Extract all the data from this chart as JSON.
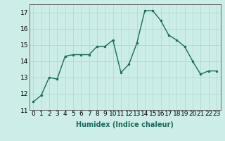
{
  "x": [
    0,
    1,
    2,
    3,
    4,
    5,
    6,
    7,
    8,
    9,
    10,
    11,
    12,
    13,
    14,
    15,
    16,
    17,
    18,
    19,
    20,
    21,
    22,
    23
  ],
  "y": [
    11.5,
    11.9,
    13.0,
    12.9,
    14.3,
    14.4,
    14.4,
    14.4,
    14.9,
    14.9,
    15.3,
    13.3,
    13.8,
    15.1,
    17.1,
    17.1,
    16.5,
    15.6,
    15.3,
    14.9,
    14.0,
    13.2,
    13.4,
    13.4
  ],
  "line_color": "#1a6b5a",
  "marker": "o",
  "marker_size": 2.0,
  "bg_color": "#cdeee8",
  "grid_major_color": "#aad4cc",
  "grid_minor_color": "#c0e8e0",
  "xlabel": "Humidex (Indice chaleur)",
  "ylim": [
    11,
    17.5
  ],
  "xlim": [
    -0.5,
    23.5
  ],
  "yticks": [
    11,
    12,
    13,
    14,
    15,
    16,
    17
  ],
  "xticks": [
    0,
    1,
    2,
    3,
    4,
    5,
    6,
    7,
    8,
    9,
    10,
    11,
    12,
    13,
    14,
    15,
    16,
    17,
    18,
    19,
    20,
    21,
    22,
    23
  ],
  "xlabel_fontsize": 7,
  "tick_fontsize": 6.5,
  "line_width": 1.0
}
